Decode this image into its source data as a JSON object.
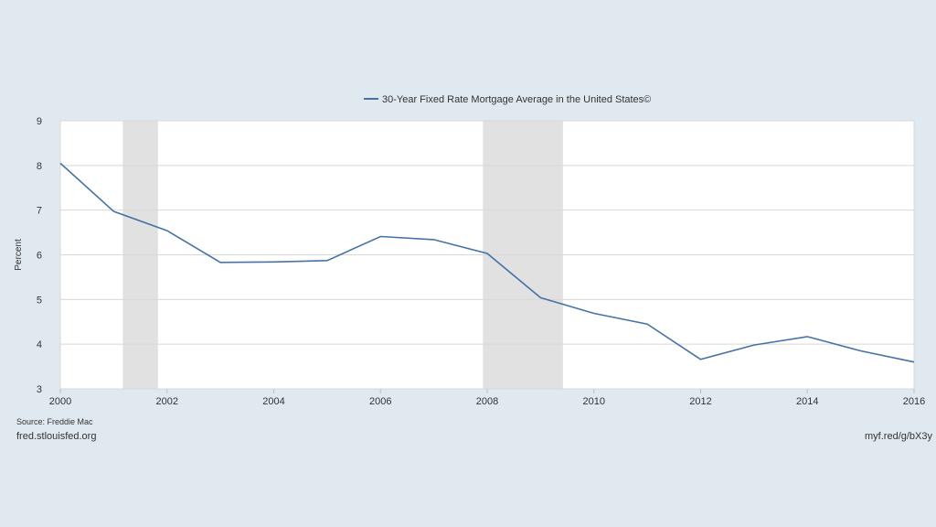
{
  "chart_data": {
    "type": "line",
    "title": "",
    "legend": {
      "position": "top-center"
    },
    "series": [
      {
        "name": "30-Year Fixed Rate Mortgage Average in the United States©",
        "color": "#4572a7",
        "x": [
          2000,
          2001,
          2002,
          2003,
          2004,
          2005,
          2006,
          2007,
          2008,
          2009,
          2010,
          2011,
          2012,
          2013,
          2014,
          2015,
          2016
        ],
        "y": [
          8.05,
          6.97,
          6.54,
          5.83,
          5.84,
          5.87,
          6.41,
          6.34,
          6.03,
          5.04,
          4.69,
          4.45,
          3.66,
          3.98,
          4.17,
          3.85,
          3.6
        ]
      }
    ],
    "recessions": [
      {
        "start": 2001.17,
        "end": 2001.83
      },
      {
        "start": 2007.92,
        "end": 2009.42
      }
    ],
    "recession_color": "#e1e1e1",
    "xlim": [
      2000,
      2016
    ],
    "ylim": [
      3,
      9
    ],
    "xticks": [
      2000,
      2002,
      2004,
      2006,
      2008,
      2010,
      2012,
      2014,
      2016
    ],
    "yticks": [
      3,
      4,
      5,
      6,
      7,
      8,
      9
    ],
    "xlabel": "",
    "ylabel": "Percent",
    "grid": true
  },
  "footer": {
    "source": "Source: Freddie Mac",
    "site": "fred.stlouisfed.org",
    "shortlink": "myf.red/g/bX3y"
  }
}
